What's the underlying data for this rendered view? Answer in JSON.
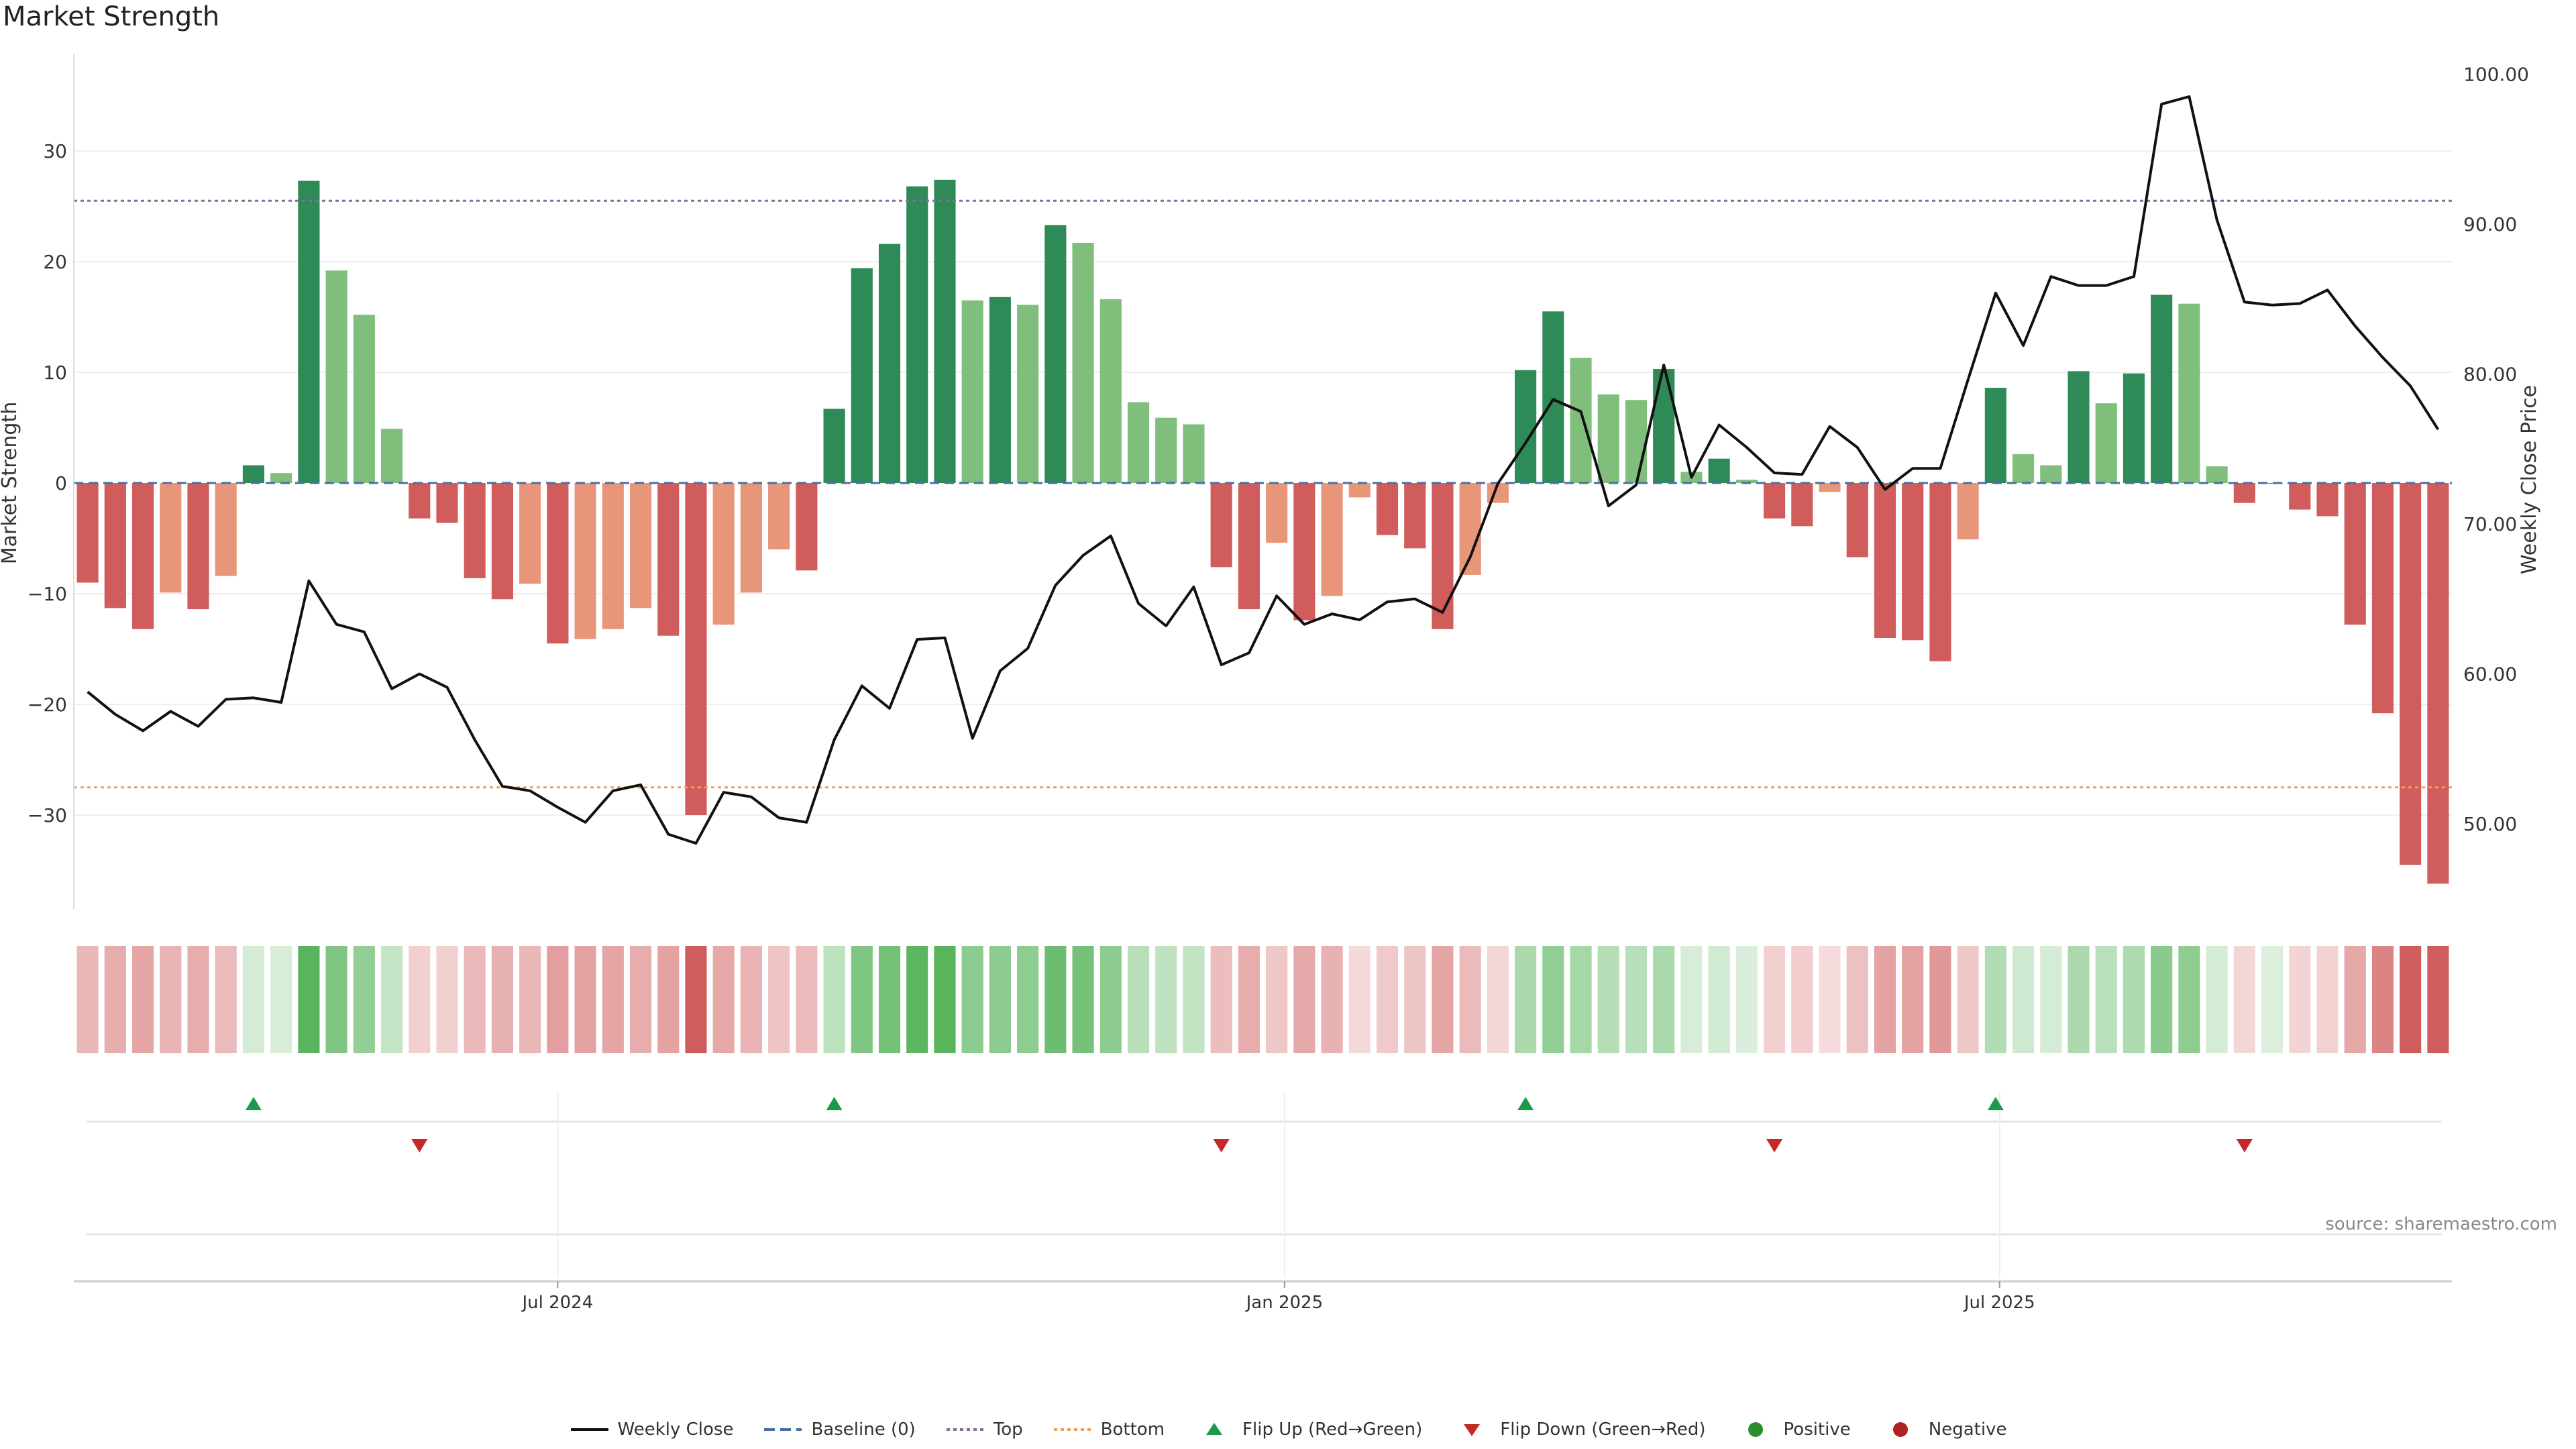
{
  "title": "Market Strength",
  "source": "source: sharemaestro.com",
  "colors": {
    "strong_green": "#2e8b57",
    "light_green": "#7fbf7b",
    "strong_red": "#d05c5c",
    "light_red": "#e8967a",
    "price_line": "#111111",
    "baseline": "#4a6fa5",
    "top": "#8a6a9a",
    "bottom": "#e8a060",
    "flip_up": "#1a9a4a",
    "flip_down": "#c62828",
    "positive": "#2e8b2e",
    "negative": "#b22222"
  },
  "legend": [
    {
      "label": "Weekly Close",
      "icon": "solid-line-icon"
    },
    {
      "label": "Baseline (0)",
      "icon": "dashed-line-icon"
    },
    {
      "label": "Top",
      "icon": "dotted-line-icon"
    },
    {
      "label": "Bottom",
      "icon": "dotted-line-icon"
    },
    {
      "label": "Flip Up (Red→Green)",
      "icon": "triangle-up-icon"
    },
    {
      "label": "Flip Down (Green→Red)",
      "icon": "triangle-down-icon"
    },
    {
      "label": "Positive",
      "icon": "dot-icon"
    },
    {
      "label": "Negative",
      "icon": "dot-icon"
    }
  ],
  "chart_data": {
    "type": "bar",
    "title": "Market Strength",
    "ylabel": "Market Strength",
    "y2label": "Weekly Close Price",
    "ylim": [
      -38,
      38
    ],
    "y2lim": [
      45,
      101
    ],
    "yticks": [
      "30",
      "20",
      "10",
      "0",
      "−10",
      "−20",
      "−30"
    ],
    "y2ticks": [
      "100.00",
      "90.00",
      "80.00",
      "70.00",
      "60.00",
      "50.00"
    ],
    "top_level": 25.5,
    "bottom_level": -27.5,
    "start_date": "2024-03-04",
    "xticks": [
      {
        "label": "Jul 2024",
        "date": "2024-07-01"
      },
      {
        "label": "Jan 2025",
        "date": "2025-01-01"
      },
      {
        "label": "Jul 2025",
        "date": "2025-07-01"
      }
    ],
    "strength": [
      -9,
      -11.3,
      -13.2,
      -9.9,
      -11.4,
      -8.4,
      1.6,
      0.9,
      27.3,
      19.2,
      15.2,
      4.9,
      -3.2,
      -3.6,
      -8.6,
      -10.5,
      -9.1,
      -14.5,
      -14.1,
      -13.2,
      -11.3,
      -13.8,
      -30,
      -12.8,
      -9.9,
      -6,
      -7.9,
      6.7,
      19.4,
      21.6,
      26.8,
      27.4,
      16.5,
      16.8,
      16.1,
      23.3,
      21.7,
      16.6,
      7.3,
      5.9,
      5.3,
      -7.6,
      -11.4,
      -5.4,
      -12.4,
      -10.2,
      -1.3,
      -4.7,
      -5.9,
      -13.2,
      -8.3,
      -1.8,
      10.2,
      15.5,
      11.3,
      8,
      7.5,
      10.3,
      1,
      2.2,
      0.3,
      -3.2,
      -3.9,
      -0.8,
      -6.7,
      -14,
      -14.2,
      -16.1,
      -5.1,
      8.6,
      2.6,
      1.6,
      10.1,
      7.2,
      9.9,
      17,
      16.2,
      1.5,
      -1.8,
      0,
      -2.4,
      -3,
      -12.8,
      -20.8,
      -34.5,
      -36.2
    ],
    "weekly_close": [
      58.8,
      57.3,
      56.2,
      57.5,
      56.5,
      58.3,
      58.4,
      58.1,
      66.2,
      63.3,
      62.8,
      59,
      60,
      59.1,
      55.6,
      52.5,
      52.2,
      51.1,
      50.1,
      52.2,
      52.6,
      49.3,
      48.7,
      52.1,
      51.8,
      50.4,
      50.1,
      55.6,
      59.2,
      57.7,
      62.3,
      62.4,
      55.7,
      60.2,
      61.7,
      65.9,
      67.9,
      69.2,
      64.7,
      63.2,
      65.8,
      60.6,
      61.4,
      65.2,
      63.3,
      64,
      63.6,
      64.8,
      65,
      64.1,
      67.8,
      72.7,
      75.4,
      78.3,
      77.5,
      71.2,
      72.6,
      80.6,
      73.1,
      76.6,
      75.1,
      73.4,
      73.3,
      76.5,
      75.1,
      72.3,
      73.7,
      73.7,
      79.6,
      85.4,
      81.9,
      86.5,
      85.9,
      85.9,
      86.5,
      98,
      98.5,
      90.3,
      84.8,
      84.6,
      84.7,
      85.6,
      83.2,
      81.1,
      79.2,
      76.3
    ],
    "flip_up": [
      6,
      27,
      52,
      69
    ],
    "flip_down": [
      12,
      41,
      61,
      78
    ]
  }
}
